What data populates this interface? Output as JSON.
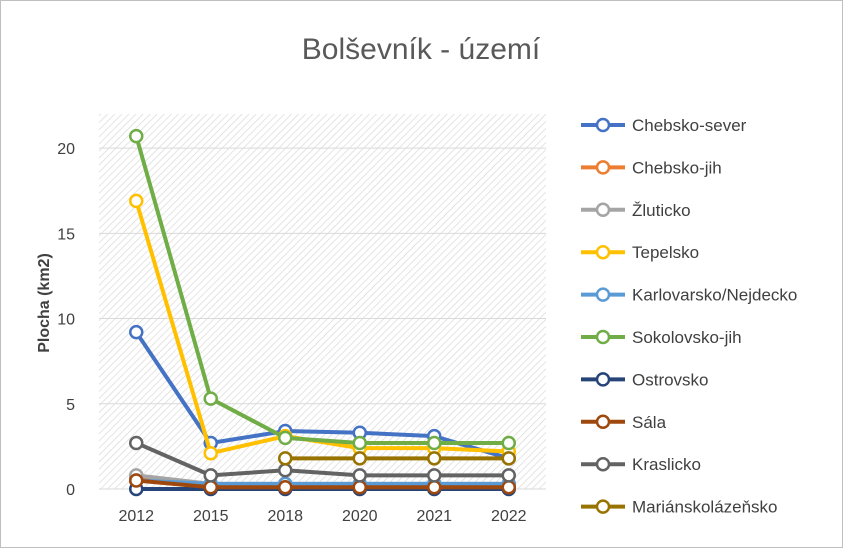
{
  "chart_data": {
    "type": "line",
    "title": "Bolševník - území",
    "xlabel": "",
    "ylabel": "Plocha (km2)",
    "ylim": [
      0,
      22
    ],
    "yticks": [
      0,
      5,
      10,
      15,
      20
    ],
    "x": [
      "2012",
      "2015",
      "2018",
      "2020",
      "2021",
      "2022"
    ],
    "grid": "hatched plot background",
    "legend_position": "right",
    "series": [
      {
        "name": "Chebsko-sever",
        "color": "#4472c4",
        "values": [
          9.2,
          2.7,
          3.4,
          3.3,
          3.1,
          1.8
        ]
      },
      {
        "name": "Chebsko-jih",
        "color": "#ed7d31",
        "values": [
          0.6,
          0.2,
          0.2,
          0.2,
          0.2,
          0.2
        ]
      },
      {
        "name": "Žluticko",
        "color": "#a5a5a5",
        "values": [
          0.8,
          0.3,
          0.3,
          0.3,
          0.3,
          0.3
        ]
      },
      {
        "name": "Tepelsko",
        "color": "#ffc000",
        "values": [
          16.9,
          2.1,
          3.1,
          2.4,
          2.4,
          2.2
        ]
      },
      {
        "name": "Karlovarsko/Nejdecko",
        "color": "#5b9bd5",
        "values": [
          0.5,
          0.3,
          0.3,
          0.3,
          0.3,
          0.3
        ]
      },
      {
        "name": "Sokolovsko-jih",
        "color": "#70ad47",
        "values": [
          20.7,
          5.3,
          3.0,
          2.7,
          2.7,
          2.7
        ]
      },
      {
        "name": "Ostrovsko",
        "color": "#264478",
        "values": [
          0.0,
          0.0,
          0.0,
          0.0,
          0.0,
          0.0
        ]
      },
      {
        "name": "Sála",
        "color": "#9e480e",
        "values": [
          0.5,
          0.1,
          0.1,
          0.1,
          0.1,
          0.1
        ]
      },
      {
        "name": "Kraslicko",
        "color": "#636363",
        "values": [
          2.7,
          0.8,
          1.1,
          0.8,
          0.8,
          0.8
        ]
      },
      {
        "name": "Mariánskolázeňsko",
        "color": "#997300",
        "values": [
          null,
          null,
          1.8,
          1.8,
          1.8,
          1.8
        ]
      }
    ]
  }
}
